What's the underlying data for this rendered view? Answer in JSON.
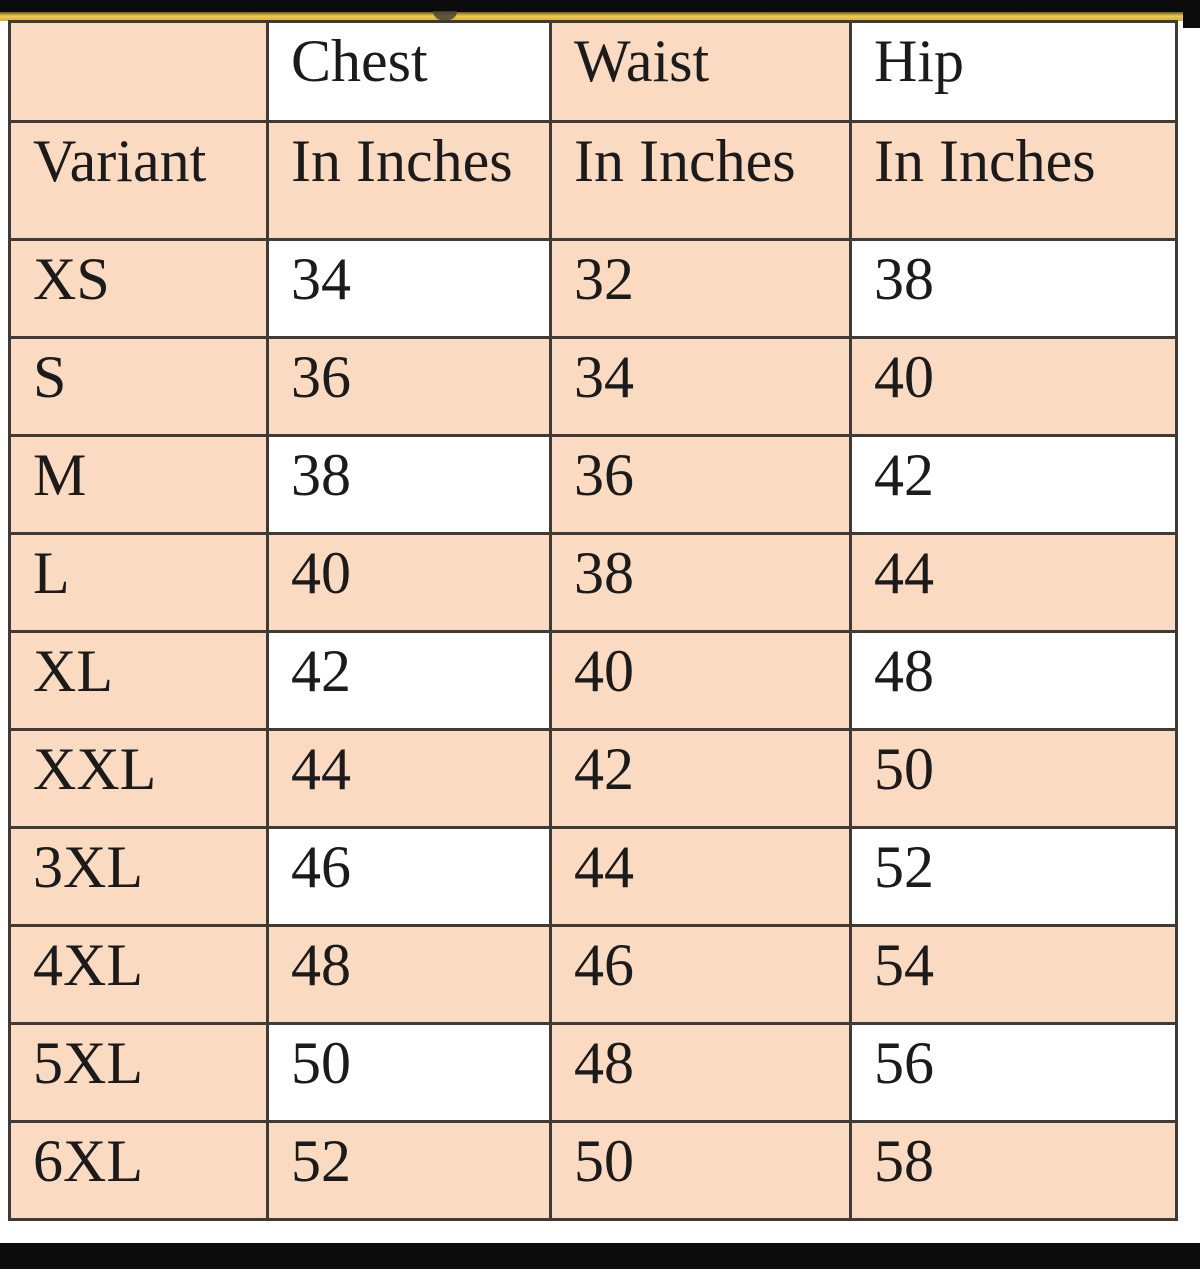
{
  "colors": {
    "peach": "#fadbc1",
    "cell_white": "#ffffff",
    "border": "#3e3a36",
    "text": "#1b1b1b",
    "gold_accent": "#d9ab36",
    "bar_black": "#0c0c0c",
    "page_background": "#ffffff"
  },
  "chart_data": {
    "type": "table",
    "header_row_1": [
      "",
      "Chest",
      "Waist",
      "Hip"
    ],
    "header_row_2": [
      "Variant",
      "In Inches",
      "In Inches",
      "In Inches"
    ],
    "rows": [
      [
        "XS",
        "34",
        "32",
        "38"
      ],
      [
        "S",
        "36",
        "34",
        "40"
      ],
      [
        "M",
        "38",
        "36",
        "42"
      ],
      [
        "L",
        "40",
        "38",
        "44"
      ],
      [
        "XL",
        "42",
        "40",
        "48"
      ],
      [
        "XXL",
        "44",
        "42",
        "50"
      ],
      [
        "3XL",
        "46",
        "44",
        "52"
      ],
      [
        "4XL",
        "48",
        "46",
        "54"
      ],
      [
        "5XL",
        "50",
        "48",
        "56"
      ],
      [
        "6XL",
        "52",
        "50",
        "58"
      ]
    ],
    "units": "inches",
    "layout_hints": {
      "variant_column_shading": "always-peach",
      "waist_column_shading": "always-peach",
      "chest_hip_shading": "white on header row 1 and rows XS, M, XL, 3XL, 5XL; peach otherwise"
    }
  }
}
